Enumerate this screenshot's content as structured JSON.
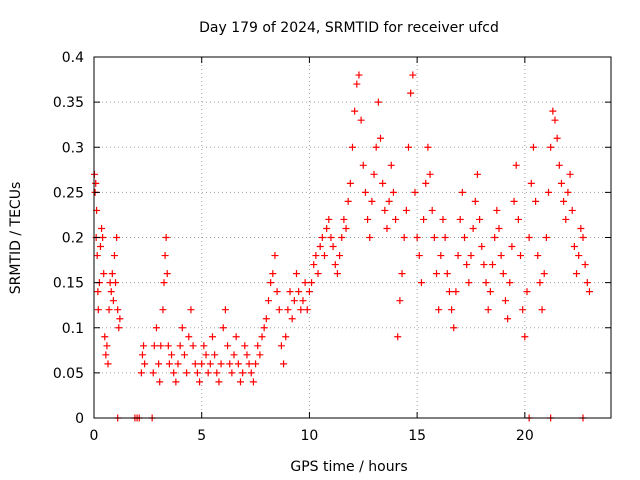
{
  "chart_data": {
    "type": "scatter",
    "title": "Day 179 of 2024, SRMTID for receiver ufcd",
    "xlabel": "GPS time / hours",
    "ylabel": "SRMTID / TECUs",
    "xlim": [
      0,
      24
    ],
    "ylim": [
      0,
      0.4
    ],
    "xticks": [
      0,
      5,
      10,
      15,
      20
    ],
    "yticks": [
      0,
      0.05,
      0.1,
      0.15,
      0.2,
      0.25,
      0.3,
      0.35,
      0.4
    ],
    "xtick_labels": [
      "0",
      "5",
      "10",
      "15",
      "20"
    ],
    "ytick_labels": [
      "0",
      "0.05",
      "0.1",
      "0.15",
      "0.2",
      "0.25",
      "0.3",
      "0.35",
      "0.4"
    ],
    "grid": true,
    "marker": "+",
    "colors": {
      "points": "#ff0000",
      "axes": "#000000",
      "grid": "#a0a0a0"
    },
    "series": [
      {
        "name": "SRMTID",
        "points": [
          [
            0.02,
            0.27
          ],
          [
            0.05,
            0.25
          ],
          [
            0.08,
            0.26
          ],
          [
            0.1,
            0.2
          ],
          [
            0.12,
            0.23
          ],
          [
            0.15,
            0.18
          ],
          [
            0.18,
            0.14
          ],
          [
            0.2,
            0.12
          ],
          [
            0.25,
            0.15
          ],
          [
            0.3,
            0.19
          ],
          [
            0.35,
            0.21
          ],
          [
            0.4,
            0.2
          ],
          [
            0.45,
            0.16
          ],
          [
            0.5,
            0.09
          ],
          [
            0.55,
            0.07
          ],
          [
            0.6,
            0.08
          ],
          [
            0.65,
            0.06
          ],
          [
            0.7,
            0.12
          ],
          [
            0.75,
            0.15
          ],
          [
            0.8,
            0.14
          ],
          [
            0.85,
            0.16
          ],
          [
            0.9,
            0.13
          ],
          [
            0.95,
            0.18
          ],
          [
            1.0,
            0.15
          ],
          [
            1.05,
            0.2
          ],
          [
            1.1,
            0.12
          ],
          [
            1.15,
            0.1
          ],
          [
            1.2,
            0.11
          ],
          [
            1.1,
            0.0
          ],
          [
            1.9,
            0.0
          ],
          [
            2.0,
            0.0
          ],
          [
            2.1,
            0.0
          ],
          [
            2.2,
            0.05
          ],
          [
            2.25,
            0.07
          ],
          [
            2.3,
            0.08
          ],
          [
            2.35,
            0.06
          ],
          [
            2.7,
            0.0
          ],
          [
            2.75,
            0.05
          ],
          [
            2.8,
            0.08
          ],
          [
            2.9,
            0.1
          ],
          [
            3.0,
            0.06
          ],
          [
            3.05,
            0.04
          ],
          [
            3.1,
            0.08
          ],
          [
            3.2,
            0.12
          ],
          [
            3.25,
            0.15
          ],
          [
            3.3,
            0.18
          ],
          [
            3.35,
            0.2
          ],
          [
            3.4,
            0.16
          ],
          [
            3.45,
            0.08
          ],
          [
            3.5,
            0.06
          ],
          [
            3.6,
            0.07
          ],
          [
            3.7,
            0.05
          ],
          [
            3.8,
            0.04
          ],
          [
            3.9,
            0.06
          ],
          [
            4.0,
            0.08
          ],
          [
            4.1,
            0.1
          ],
          [
            4.2,
            0.07
          ],
          [
            4.3,
            0.05
          ],
          [
            4.4,
            0.09
          ],
          [
            4.5,
            0.12
          ],
          [
            4.6,
            0.08
          ],
          [
            4.7,
            0.06
          ],
          [
            4.8,
            0.05
          ],
          [
            4.9,
            0.04
          ],
          [
            5.0,
            0.06
          ],
          [
            5.1,
            0.08
          ],
          [
            5.2,
            0.07
          ],
          [
            5.3,
            0.05
          ],
          [
            5.4,
            0.06
          ],
          [
            5.5,
            0.09
          ],
          [
            5.6,
            0.07
          ],
          [
            5.7,
            0.05
          ],
          [
            5.8,
            0.04
          ],
          [
            5.9,
            0.06
          ],
          [
            6.0,
            0.1
          ],
          [
            6.1,
            0.12
          ],
          [
            6.2,
            0.08
          ],
          [
            6.3,
            0.06
          ],
          [
            6.4,
            0.05
          ],
          [
            6.5,
            0.07
          ],
          [
            6.6,
            0.09
          ],
          [
            6.7,
            0.06
          ],
          [
            6.8,
            0.04
          ],
          [
            6.9,
            0.05
          ],
          [
            7.0,
            0.08
          ],
          [
            7.1,
            0.07
          ],
          [
            7.2,
            0.06
          ],
          [
            7.3,
            0.05
          ],
          [
            7.4,
            0.04
          ],
          [
            7.5,
            0.06
          ],
          [
            7.6,
            0.08
          ],
          [
            7.7,
            0.07
          ],
          [
            7.8,
            0.09
          ],
          [
            7.9,
            0.1
          ],
          [
            8.0,
            0.11
          ],
          [
            8.1,
            0.13
          ],
          [
            8.2,
            0.15
          ],
          [
            8.3,
            0.16
          ],
          [
            8.4,
            0.18
          ],
          [
            8.5,
            0.14
          ],
          [
            8.6,
            0.12
          ],
          [
            8.7,
            0.08
          ],
          [
            8.8,
            0.06
          ],
          [
            8.9,
            0.09
          ],
          [
            9.0,
            0.12
          ],
          [
            9.1,
            0.14
          ],
          [
            9.2,
            0.11
          ],
          [
            9.3,
            0.13
          ],
          [
            9.4,
            0.16
          ],
          [
            9.5,
            0.14
          ],
          [
            9.6,
            0.12
          ],
          [
            9.7,
            0.13
          ],
          [
            9.8,
            0.15
          ],
          [
            9.9,
            0.12
          ],
          [
            10.0,
            0.14
          ],
          [
            10.1,
            0.15
          ],
          [
            10.2,
            0.17
          ],
          [
            10.3,
            0.18
          ],
          [
            10.4,
            0.16
          ],
          [
            10.5,
            0.19
          ],
          [
            10.6,
            0.2
          ],
          [
            10.7,
            0.18
          ],
          [
            10.8,
            0.21
          ],
          [
            10.9,
            0.22
          ],
          [
            11.0,
            0.2
          ],
          [
            11.1,
            0.19
          ],
          [
            11.2,
            0.17
          ],
          [
            11.3,
            0.16
          ],
          [
            11.4,
            0.18
          ],
          [
            11.5,
            0.2
          ],
          [
            11.6,
            0.22
          ],
          [
            11.7,
            0.21
          ],
          [
            11.8,
            0.24
          ],
          [
            11.9,
            0.26
          ],
          [
            12.0,
            0.3
          ],
          [
            12.1,
            0.34
          ],
          [
            12.2,
            0.37
          ],
          [
            12.3,
            0.38
          ],
          [
            12.4,
            0.33
          ],
          [
            12.5,
            0.28
          ],
          [
            12.6,
            0.25
          ],
          [
            12.7,
            0.22
          ],
          [
            12.8,
            0.2
          ],
          [
            12.9,
            0.24
          ],
          [
            13.0,
            0.27
          ],
          [
            13.1,
            0.3
          ],
          [
            13.2,
            0.35
          ],
          [
            13.3,
            0.31
          ],
          [
            13.4,
            0.26
          ],
          [
            13.5,
            0.23
          ],
          [
            13.6,
            0.21
          ],
          [
            13.7,
            0.24
          ],
          [
            13.8,
            0.28
          ],
          [
            13.9,
            0.25
          ],
          [
            14.0,
            0.22
          ],
          [
            14.1,
            0.09
          ],
          [
            14.2,
            0.13
          ],
          [
            14.3,
            0.16
          ],
          [
            14.4,
            0.2
          ],
          [
            14.5,
            0.23
          ],
          [
            14.6,
            0.3
          ],
          [
            14.7,
            0.36
          ],
          [
            14.8,
            0.38
          ],
          [
            14.9,
            0.25
          ],
          [
            15.0,
            0.2
          ],
          [
            15.1,
            0.18
          ],
          [
            15.2,
            0.15
          ],
          [
            15.3,
            0.22
          ],
          [
            15.4,
            0.26
          ],
          [
            15.5,
            0.3
          ],
          [
            15.6,
            0.27
          ],
          [
            15.7,
            0.23
          ],
          [
            15.8,
            0.2
          ],
          [
            15.9,
            0.16
          ],
          [
            16.0,
            0.12
          ],
          [
            16.1,
            0.18
          ],
          [
            16.2,
            0.22
          ],
          [
            16.3,
            0.2
          ],
          [
            16.4,
            0.16
          ],
          [
            16.5,
            0.14
          ],
          [
            16.6,
            0.12
          ],
          [
            16.7,
            0.1
          ],
          [
            16.8,
            0.14
          ],
          [
            16.9,
            0.18
          ],
          [
            17.0,
            0.22
          ],
          [
            17.1,
            0.25
          ],
          [
            17.2,
            0.2
          ],
          [
            17.3,
            0.17
          ],
          [
            17.4,
            0.15
          ],
          [
            17.5,
            0.18
          ],
          [
            17.6,
            0.21
          ],
          [
            17.7,
            0.24
          ],
          [
            17.8,
            0.27
          ],
          [
            17.9,
            0.22
          ],
          [
            18.0,
            0.19
          ],
          [
            18.1,
            0.17
          ],
          [
            18.2,
            0.15
          ],
          [
            18.3,
            0.12
          ],
          [
            18.4,
            0.14
          ],
          [
            18.5,
            0.17
          ],
          [
            18.6,
            0.2
          ],
          [
            18.7,
            0.23
          ],
          [
            18.8,
            0.21
          ],
          [
            18.9,
            0.18
          ],
          [
            19.0,
            0.16
          ],
          [
            19.1,
            0.13
          ],
          [
            19.2,
            0.11
          ],
          [
            19.3,
            0.15
          ],
          [
            19.4,
            0.19
          ],
          [
            19.5,
            0.24
          ],
          [
            19.6,
            0.28
          ],
          [
            19.7,
            0.22
          ],
          [
            19.8,
            0.18
          ],
          [
            19.9,
            0.12
          ],
          [
            20.0,
            0.09
          ],
          [
            20.1,
            0.14
          ],
          [
            20.2,
            0.2
          ],
          [
            20.3,
            0.26
          ],
          [
            20.4,
            0.3
          ],
          [
            20.5,
            0.24
          ],
          [
            20.6,
            0.18
          ],
          [
            20.7,
            0.15
          ],
          [
            20.8,
            0.12
          ],
          [
            20.9,
            0.16
          ],
          [
            21.0,
            0.2
          ],
          [
            21.1,
            0.25
          ],
          [
            21.2,
            0.3
          ],
          [
            21.3,
            0.34
          ],
          [
            21.4,
            0.33
          ],
          [
            21.5,
            0.31
          ],
          [
            21.6,
            0.28
          ],
          [
            21.7,
            0.26
          ],
          [
            21.8,
            0.24
          ],
          [
            21.9,
            0.22
          ],
          [
            22.0,
            0.25
          ],
          [
            22.1,
            0.27
          ],
          [
            22.2,
            0.23
          ],
          [
            22.3,
            0.19
          ],
          [
            22.4,
            0.16
          ],
          [
            22.5,
            0.18
          ],
          [
            22.6,
            0.21
          ],
          [
            22.7,
            0.2
          ],
          [
            22.8,
            0.17
          ],
          [
            22.9,
            0.15
          ],
          [
            23.0,
            0.14
          ],
          [
            20.2,
            0.0
          ],
          [
            21.2,
            0.0
          ],
          [
            22.7,
            0.0
          ]
        ]
      }
    ]
  }
}
